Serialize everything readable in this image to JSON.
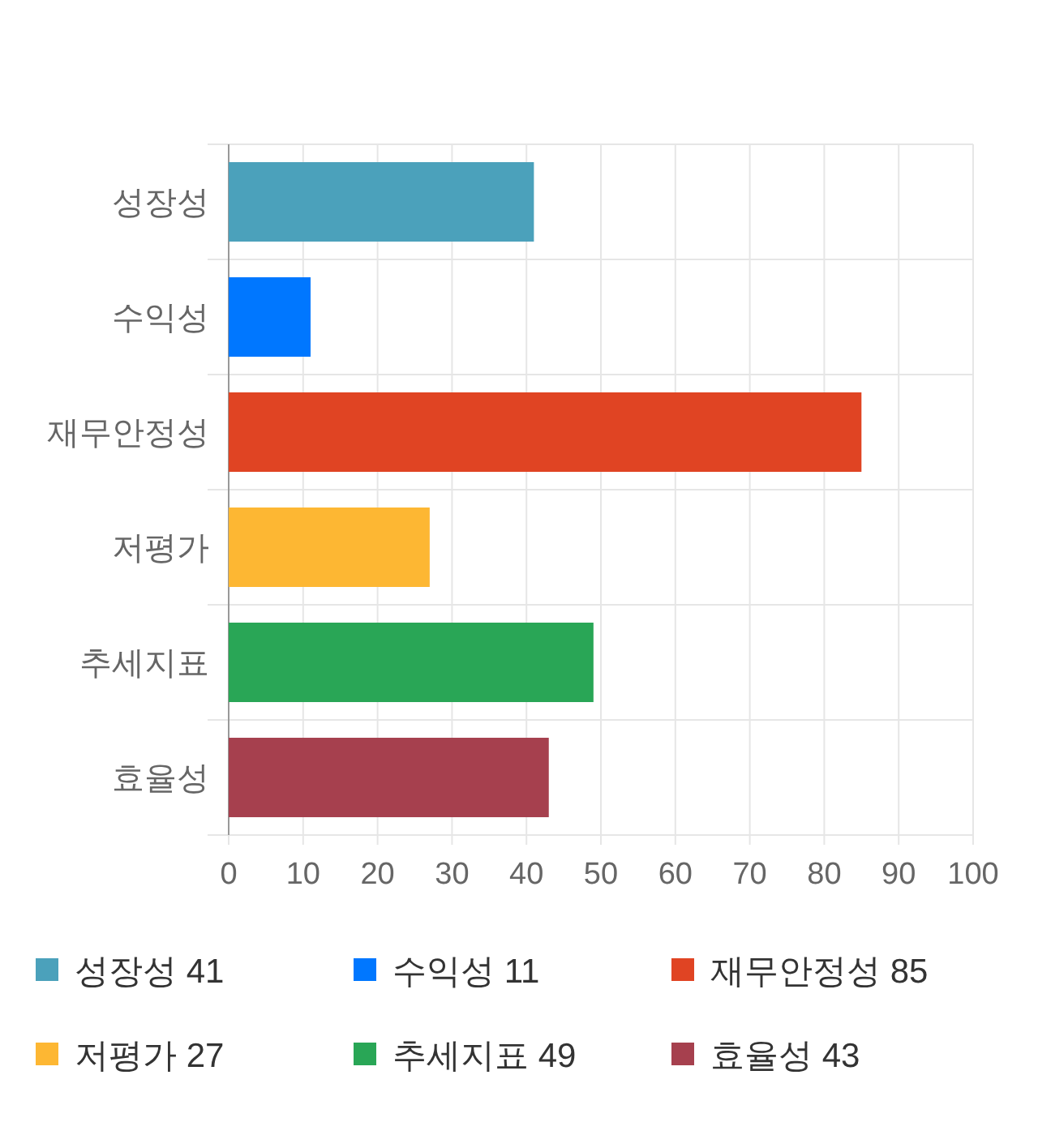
{
  "chart_data": {
    "type": "bar",
    "orientation": "horizontal",
    "stacked": true,
    "categories": [
      "성장성",
      "수익성",
      "재무안정성",
      "저평가",
      "추세지표",
      "효율성"
    ],
    "series": [
      {
        "name": "성장성 41",
        "color": "#4ba1bb",
        "values": [
          41,
          null,
          null,
          null,
          null,
          null
        ]
      },
      {
        "name": "수익성 11",
        "color": "#0077ff",
        "values": [
          null,
          11,
          null,
          null,
          null,
          null
        ]
      },
      {
        "name": "재무안정성 85",
        "color": "#e04423",
        "values": [
          null,
          null,
          85,
          null,
          null,
          null
        ]
      },
      {
        "name": "저평가 27",
        "color": "#fdb733",
        "values": [
          null,
          null,
          null,
          27,
          null,
          null
        ]
      },
      {
        "name": "추세지표 49",
        "color": "#29a656",
        "values": [
          null,
          null,
          null,
          null,
          49,
          null
        ]
      },
      {
        "name": "효율성 43",
        "color": "#a6404e",
        "values": [
          null,
          null,
          null,
          null,
          null,
          43
        ]
      }
    ],
    "xlim": [
      0,
      100
    ],
    "xticks": [
      0,
      10,
      20,
      30,
      40,
      50,
      60,
      70,
      80,
      90,
      100
    ],
    "grid": true,
    "legend": "bottom"
  }
}
